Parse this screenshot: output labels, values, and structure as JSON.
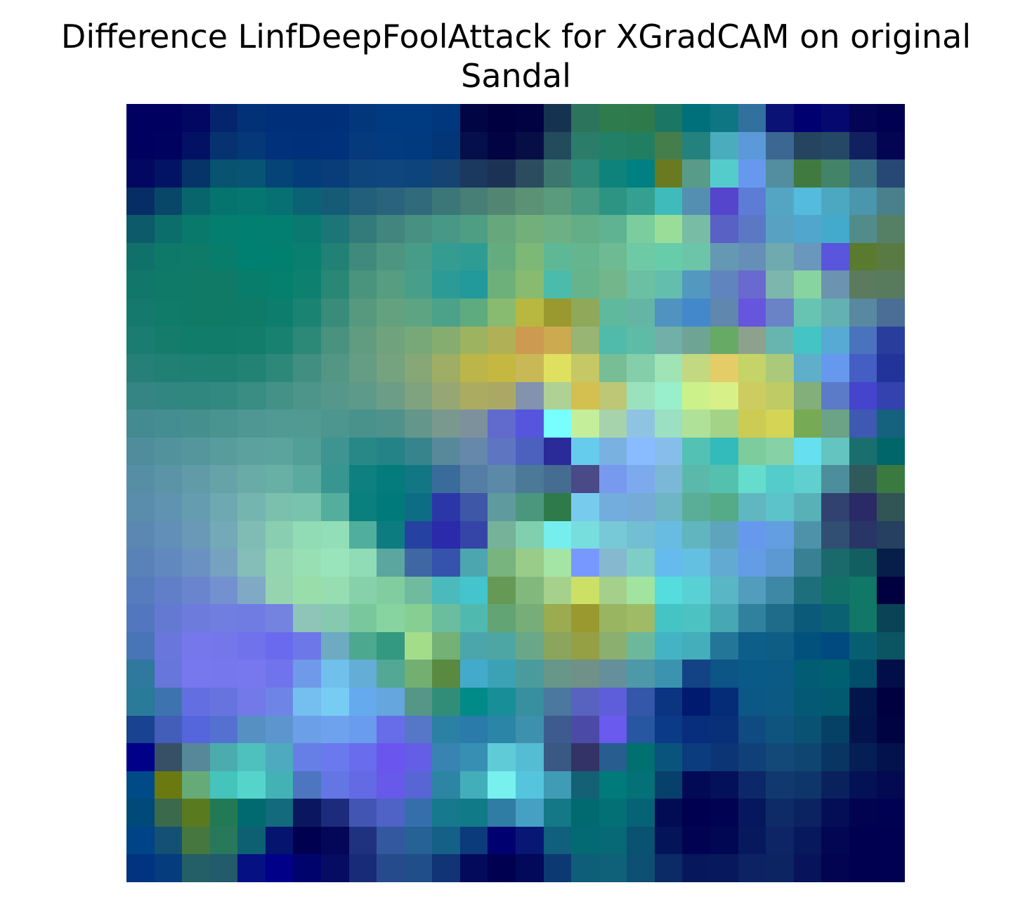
{
  "title": {
    "line1": "Difference LinfDeepFoolAttack for XGradCAM on original",
    "line2": "Sandal"
  },
  "image": {
    "description": "28x28 jet-colormap saliency difference heatmap overlaid on a dark grayscale sandal image",
    "grid_size": 28,
    "base_color": "#000050"
  }
}
